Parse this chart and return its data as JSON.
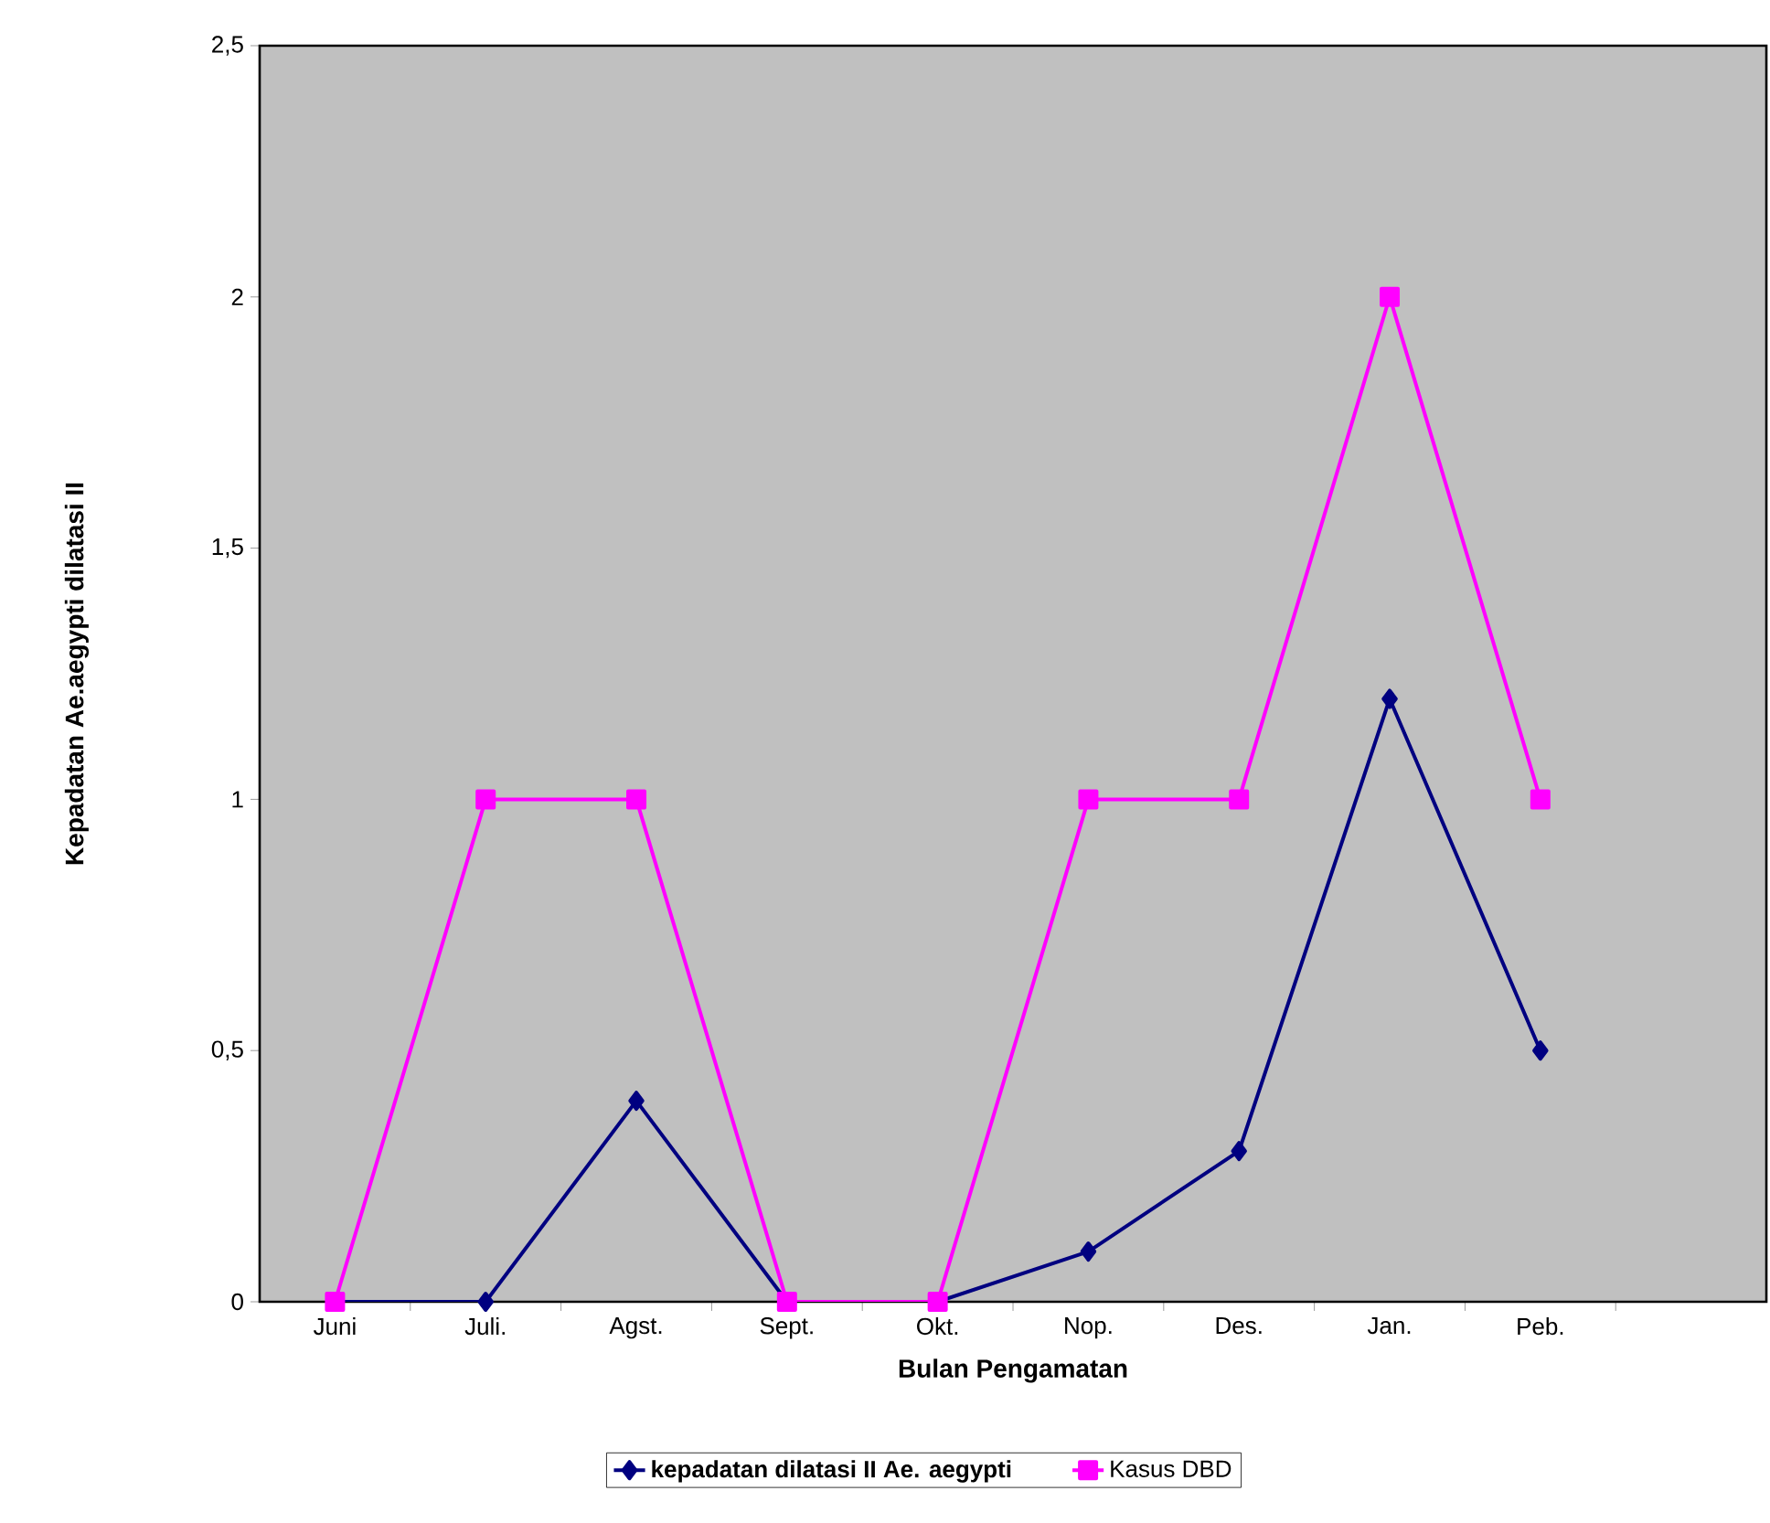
{
  "chart_data": {
    "type": "line",
    "xlabel": "Bulan Pengamatan",
    "ylabel": "Kepadatan Ae.aegypti dilatasi II",
    "categories": [
      "Juni",
      "Juli.",
      "Agst.",
      "Sept.",
      "Okt.",
      "Nop.",
      "Des.",
      "Jan.",
      "Peb.",
      null
    ],
    "ylim": [
      0,
      2.5
    ],
    "yticks": [
      0,
      {
        "value": 0.5,
        "label": "0,5"
      },
      1,
      {
        "value": 1.5,
        "label": "1,5"
      },
      2,
      {
        "value": 2.5,
        "label": "2,5"
      }
    ],
    "legend": "bottom",
    "line_style": "solid",
    "series": [
      {
        "name": "kepadatan dilatasi II Ae. aegypti",
        "color": "#000080",
        "marker": "diamond",
        "values": [
          0,
          0,
          0.4,
          0,
          0,
          0.1,
          0.3,
          1.2,
          0.5,
          null
        ]
      },
      {
        "name": "Kasus DBD",
        "color": "#ff00ff",
        "marker": "square",
        "values": [
          0,
          1,
          1,
          0,
          0,
          1,
          1,
          2,
          1,
          null
        ]
      }
    ]
  }
}
